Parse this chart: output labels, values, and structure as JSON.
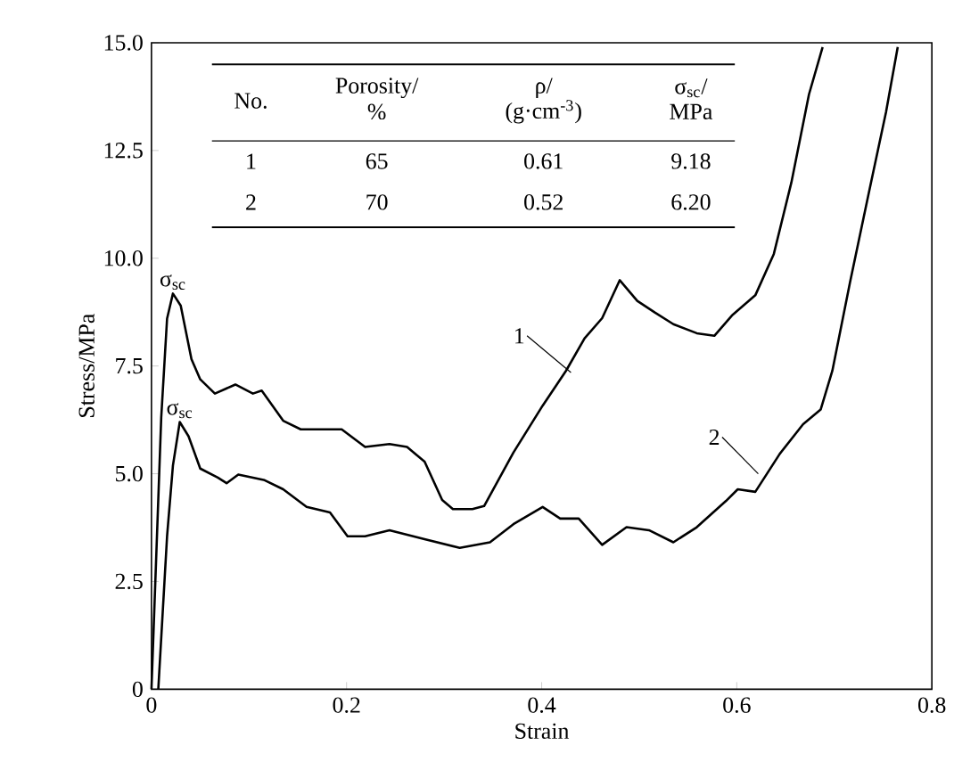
{
  "chart_data": {
    "type": "line",
    "xlabel": "Strain",
    "ylabel": "Stress/MPa",
    "xlim": [
      0,
      0.8
    ],
    "ylim": [
      0,
      15
    ],
    "xticks": [
      0,
      0.2,
      0.4,
      0.6,
      0.8
    ],
    "yticks": [
      0,
      2.5,
      {
        "value": 5,
        "label": "5.0"
      },
      7.5,
      {
        "value": 10,
        "label": "10.0"
      },
      12.5,
      {
        "value": 15,
        "label": "15.0"
      }
    ],
    "grid": false,
    "series": [
      {
        "name": "1",
        "color": "#000000",
        "x": [
          0,
          0.01,
          0.016,
          0.022,
          0.03,
          0.041,
          0.05,
          0.065,
          0.086,
          0.104,
          0.113,
          0.135,
          0.153,
          0.171,
          0.195,
          0.219,
          0.244,
          0.262,
          0.28,
          0.298,
          0.309,
          0.329,
          0.341,
          0.371,
          0.401,
          0.425,
          0.444,
          0.462,
          0.48,
          0.498,
          0.516,
          0.535,
          0.559,
          0.577,
          0.595,
          0.619,
          0.638,
          0.656,
          0.674,
          0.688
        ],
        "values": [
          0,
          6.3,
          8.6,
          9.18,
          8.9,
          7.66,
          7.19,
          6.86,
          7.07,
          6.86,
          6.93,
          6.23,
          6.03,
          6.03,
          6.03,
          5.62,
          5.69,
          5.62,
          5.28,
          4.39,
          4.18,
          4.18,
          4.25,
          5.49,
          6.58,
          7.39,
          8.14,
          8.61,
          9.49,
          9.01,
          8.74,
          8.47,
          8.26,
          8.2,
          8.67,
          9.14,
          10.1,
          11.76,
          13.8,
          14.9
        ]
      },
      {
        "name": "2",
        "color": "#000000",
        "x": [
          0.007,
          0.016,
          0.022,
          0.029,
          0.038,
          0.05,
          0.068,
          0.077,
          0.089,
          0.116,
          0.135,
          0.159,
          0.183,
          0.201,
          0.219,
          0.244,
          0.28,
          0.316,
          0.347,
          0.371,
          0.401,
          0.419,
          0.438,
          0.462,
          0.487,
          0.51,
          0.535,
          0.559,
          0.589,
          0.601,
          0.619,
          0.644,
          0.668,
          0.686,
          0.698,
          0.716,
          0.735,
          0.753,
          0.765
        ],
        "values": [
          0,
          3.55,
          5.19,
          6.2,
          5.87,
          5.12,
          4.91,
          4.78,
          4.98,
          4.85,
          4.64,
          4.23,
          4.1,
          3.55,
          3.55,
          3.69,
          3.48,
          3.28,
          3.41,
          3.83,
          4.23,
          3.96,
          3.96,
          3.35,
          3.76,
          3.69,
          3.41,
          3.76,
          4.37,
          4.64,
          4.58,
          5.46,
          6.15,
          6.49,
          7.39,
          9.43,
          11.48,
          13.39,
          14.9
        ]
      }
    ],
    "annotations": [
      {
        "text": "σ$_{sc}$",
        "x": 0.022,
        "y": 9.18
      },
      {
        "text": "σ$_{sc}$",
        "x": 0.029,
        "y": 6.2
      },
      "No.",
      "Porosity/",
      "%",
      "ρ/",
      "(g·cm$^{-3}$)",
      "σ$_{sc}$/",
      "MPa",
      "1",
      "65",
      "0.61",
      "9.18",
      "2",
      "70",
      "0.52",
      "6.20"
    ]
  }
}
